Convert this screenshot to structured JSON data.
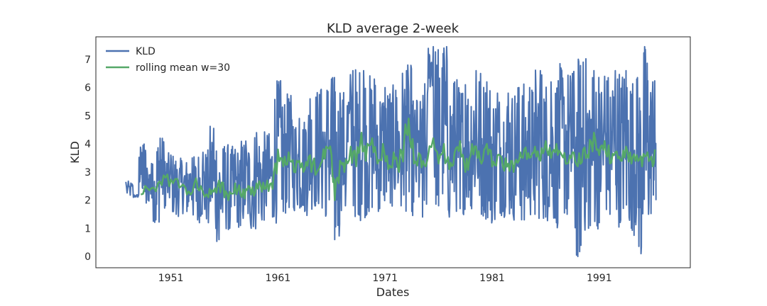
{
  "chart_data": {
    "type": "line",
    "title": "KLD average 2-week",
    "xlabel": "Dates",
    "ylabel": "KLD",
    "xlim": [
      1944.0,
      1999.5
    ],
    "ylim": [
      -0.4,
      7.8
    ],
    "x_ticks": [
      1951,
      1961,
      1971,
      1981,
      1991
    ],
    "x_tick_labels": [
      "1951",
      "1961",
      "1971",
      "1981",
      "1991"
    ],
    "y_ticks": [
      0,
      1,
      2,
      3,
      4,
      5,
      6,
      7
    ],
    "y_tick_labels": [
      "0",
      "1",
      "2",
      "3",
      "4",
      "5",
      "6",
      "7"
    ],
    "grid": false,
    "legend_position": "top-left",
    "x_range_data": [
      1946.8,
      1996.3
    ],
    "series": [
      {
        "name": "KLD",
        "color": "#4c72b0",
        "points": [
          [
            1946.8,
            2.65
          ],
          [
            1947.5,
            2.1
          ],
          [
            1948.0,
            2.2
          ],
          [
            1948.4,
            3.95
          ],
          [
            1948.7,
            1.9
          ],
          [
            1949.2,
            3.3
          ],
          [
            1949.6,
            1.3
          ],
          [
            1950.0,
            4.2
          ],
          [
            1950.5,
            1.8
          ],
          [
            1951.0,
            3.6
          ],
          [
            1951.5,
            1.5
          ],
          [
            1952.0,
            3.4
          ],
          [
            1952.5,
            1.6
          ],
          [
            1953.0,
            3.5
          ],
          [
            1953.5,
            1.3
          ],
          [
            1954.0,
            3.7
          ],
          [
            1954.5,
            1.2
          ],
          [
            1955.0,
            4.55
          ],
          [
            1955.5,
            0.6
          ],
          [
            1956.0,
            3.9
          ],
          [
            1956.5,
            1.0
          ],
          [
            1957.0,
            3.8
          ],
          [
            1957.5,
            1.1
          ],
          [
            1958.0,
            4.1
          ],
          [
            1958.5,
            1.0
          ],
          [
            1959.0,
            4.4
          ],
          [
            1959.5,
            1.3
          ],
          [
            1960.0,
            4.3
          ],
          [
            1960.5,
            1.4
          ],
          [
            1961.0,
            6.1
          ],
          [
            1961.5,
            1.6
          ],
          [
            1962.0,
            5.6
          ],
          [
            1962.5,
            1.7
          ],
          [
            1963.0,
            4.9
          ],
          [
            1963.5,
            1.6
          ],
          [
            1964.0,
            5.6
          ],
          [
            1964.5,
            1.8
          ],
          [
            1965.0,
            5.9
          ],
          [
            1965.5,
            1.5
          ],
          [
            1966.0,
            6.3
          ],
          [
            1966.3,
            0.6
          ],
          [
            1966.8,
            5.8
          ],
          [
            1967.3,
            1.8
          ],
          [
            1968.0,
            6.6
          ],
          [
            1968.5,
            1.5
          ],
          [
            1969.0,
            6.6
          ],
          [
            1969.5,
            1.6
          ],
          [
            1970.0,
            6.3
          ],
          [
            1970.5,
            1.7
          ],
          [
            1971.0,
            6.0
          ],
          [
            1971.5,
            1.9
          ],
          [
            1972.0,
            5.9
          ],
          [
            1972.5,
            1.8
          ],
          [
            1973.0,
            6.6
          ],
          [
            1973.5,
            1.6
          ],
          [
            1974.0,
            5.5
          ],
          [
            1974.5,
            1.4
          ],
          [
            1975.0,
            6.0
          ],
          [
            1975.5,
            7.45
          ],
          [
            1976.0,
            1.8
          ],
          [
            1976.5,
            7.4
          ],
          [
            1977.0,
            1.4
          ],
          [
            1977.5,
            6.2
          ],
          [
            1978.0,
            1.7
          ],
          [
            1978.5,
            6.1
          ],
          [
            1979.0,
            1.8
          ],
          [
            1979.5,
            6.6
          ],
          [
            1980.0,
            1.5
          ],
          [
            1980.5,
            6.2
          ],
          [
            1981.0,
            1.3
          ],
          [
            1981.5,
            5.8
          ],
          [
            1982.0,
            1.6
          ],
          [
            1982.5,
            5.8
          ],
          [
            1983.0,
            1.4
          ],
          [
            1983.5,
            6.0
          ],
          [
            1984.0,
            1.3
          ],
          [
            1984.5,
            6.0
          ],
          [
            1985.0,
            1.5
          ],
          [
            1985.5,
            6.6
          ],
          [
            1986.0,
            1.4
          ],
          [
            1986.5,
            6.2
          ],
          [
            1987.0,
            1.2
          ],
          [
            1987.5,
            6.6
          ],
          [
            1988.0,
            1.5
          ],
          [
            1988.5,
            6.5
          ],
          [
            1989.0,
            0.0
          ],
          [
            1989.5,
            6.9
          ],
          [
            1990.0,
            1.0
          ],
          [
            1990.5,
            6.6
          ],
          [
            1991.0,
            1.2
          ],
          [
            1991.5,
            6.4
          ],
          [
            1992.0,
            1.5
          ],
          [
            1992.5,
            6.6
          ],
          [
            1993.0,
            1.3
          ],
          [
            1993.5,
            6.6
          ],
          [
            1994.0,
            1.0
          ],
          [
            1994.5,
            6.3
          ],
          [
            1994.9,
            0.1
          ],
          [
            1995.3,
            7.35
          ],
          [
            1995.6,
            1.5
          ],
          [
            1996.0,
            6.2
          ],
          [
            1996.3,
            2.0
          ]
        ]
      },
      {
        "name": "rolling mean w=30",
        "color": "#55a868",
        "points": [
          [
            1948.2,
            2.2
          ],
          [
            1949.0,
            2.35
          ],
          [
            1949.8,
            2.6
          ],
          [
            1950.5,
            2.8
          ],
          [
            1951.2,
            2.6
          ],
          [
            1952.0,
            2.5
          ],
          [
            1952.5,
            2.2
          ],
          [
            1953.2,
            2.6
          ],
          [
            1953.8,
            2.5
          ],
          [
            1954.5,
            2.1
          ],
          [
            1955.0,
            2.3
          ],
          [
            1955.5,
            2.7
          ],
          [
            1956.0,
            2.1
          ],
          [
            1956.5,
            2.3
          ],
          [
            1957.0,
            2.6
          ],
          [
            1957.5,
            2.2
          ],
          [
            1958.0,
            2.4
          ],
          [
            1958.5,
            2.2
          ],
          [
            1959.0,
            2.6
          ],
          [
            1959.5,
            2.3
          ],
          [
            1960.0,
            2.7
          ],
          [
            1960.5,
            2.4
          ],
          [
            1961.0,
            3.8
          ],
          [
            1961.5,
            3.2
          ],
          [
            1962.0,
            3.7
          ],
          [
            1962.5,
            3.0
          ],
          [
            1963.0,
            3.4
          ],
          [
            1963.5,
            3.1
          ],
          [
            1964.0,
            3.6
          ],
          [
            1964.5,
            2.9
          ],
          [
            1965.0,
            3.3
          ],
          [
            1965.5,
            3.9
          ],
          [
            1966.0,
            3.6
          ],
          [
            1966.3,
            2.0
          ],
          [
            1966.8,
            3.4
          ],
          [
            1967.2,
            3.0
          ],
          [
            1967.8,
            3.9
          ],
          [
            1968.3,
            3.2
          ],
          [
            1968.8,
            4.4
          ],
          [
            1969.2,
            3.4
          ],
          [
            1969.8,
            4.2
          ],
          [
            1970.3,
            3.3
          ],
          [
            1970.8,
            4.0
          ],
          [
            1971.3,
            3.1
          ],
          [
            1971.8,
            3.7
          ],
          [
            1972.3,
            3.0
          ],
          [
            1972.8,
            4.2
          ],
          [
            1973.2,
            4.9
          ],
          [
            1973.7,
            3.3
          ],
          [
            1974.3,
            3.6
          ],
          [
            1974.8,
            3.2
          ],
          [
            1975.5,
            4.2
          ],
          [
            1976.0,
            3.3
          ],
          [
            1976.5,
            4.0
          ],
          [
            1977.0,
            3.1
          ],
          [
            1977.5,
            3.7
          ],
          [
            1978.0,
            4.1
          ],
          [
            1978.5,
            3.0
          ],
          [
            1979.0,
            3.6
          ],
          [
            1979.5,
            3.9
          ],
          [
            1980.0,
            3.3
          ],
          [
            1980.5,
            4.0
          ],
          [
            1981.0,
            3.2
          ],
          [
            1981.5,
            3.6
          ],
          [
            1982.0,
            3.2
          ],
          [
            1982.5,
            3.3
          ],
          [
            1983.0,
            3.0
          ],
          [
            1983.5,
            3.4
          ],
          [
            1984.0,
            3.8
          ],
          [
            1984.5,
            3.5
          ],
          [
            1985.0,
            3.9
          ],
          [
            1985.5,
            3.4
          ],
          [
            1986.0,
            4.1
          ],
          [
            1986.5,
            3.5
          ],
          [
            1987.0,
            4.0
          ],
          [
            1987.5,
            3.6
          ],
          [
            1988.0,
            3.3
          ],
          [
            1988.5,
            3.7
          ],
          [
            1989.0,
            3.2
          ],
          [
            1989.5,
            3.8
          ],
          [
            1990.0,
            3.5
          ],
          [
            1990.5,
            4.4
          ],
          [
            1991.0,
            3.6
          ],
          [
            1991.5,
            4.1
          ],
          [
            1992.0,
            3.3
          ],
          [
            1992.5,
            3.7
          ],
          [
            1993.0,
            3.4
          ],
          [
            1993.5,
            3.9
          ],
          [
            1994.0,
            3.3
          ],
          [
            1994.5,
            3.6
          ],
          [
            1995.0,
            3.2
          ],
          [
            1995.5,
            3.7
          ],
          [
            1996.0,
            3.2
          ],
          [
            1996.2,
            3.8
          ]
        ]
      }
    ]
  }
}
